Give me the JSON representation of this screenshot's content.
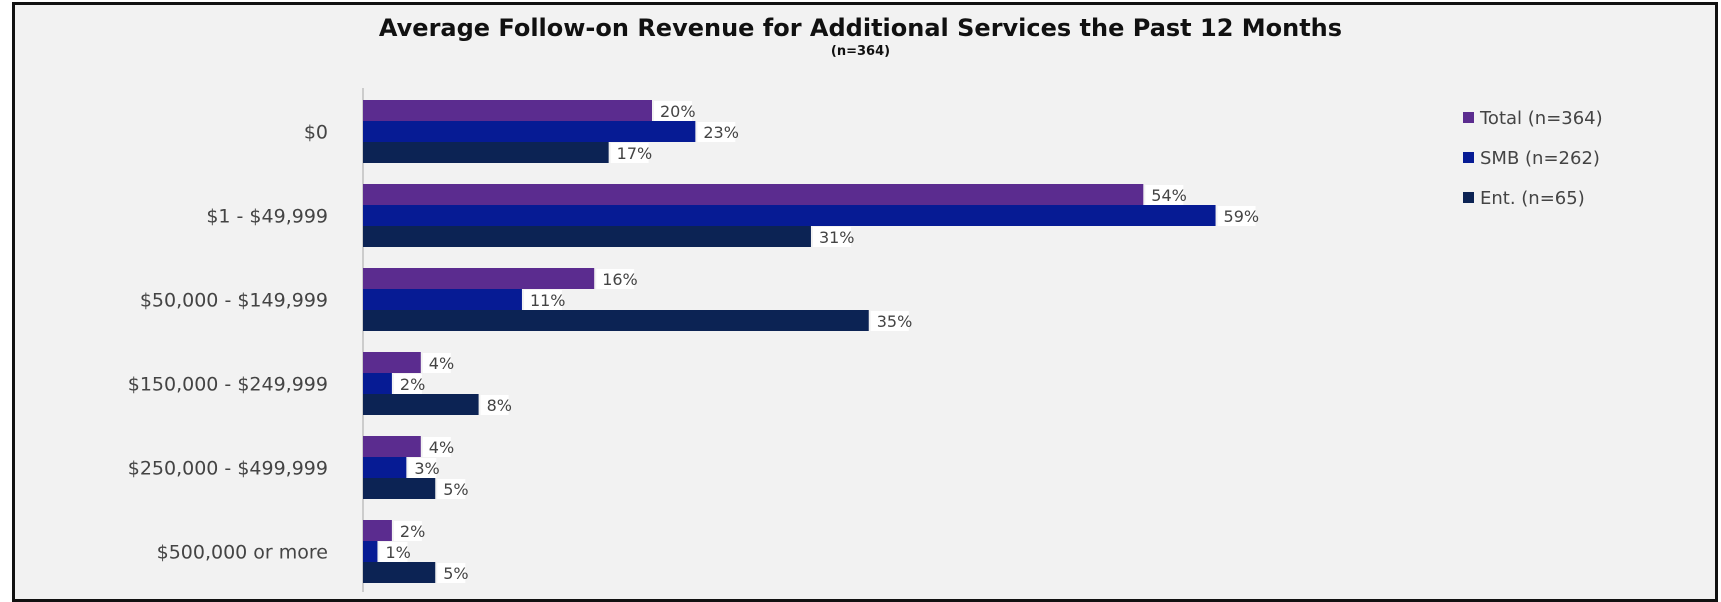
{
  "chart_data": {
    "type": "bar",
    "orientation": "horizontal",
    "title": "Average Follow-on Revenue for Additional Services the Past 12 Months",
    "subtitle": "(n=364)",
    "categories": [
      "$0",
      "$1 - $49,999",
      "$50,000 - $149,999",
      "$150,000 - $249,999",
      "$250,000 - $499,999",
      "$500,000 or more"
    ],
    "series": [
      {
        "name": "Total (n=364)",
        "color": "#5b2c8f",
        "values": [
          20,
          54,
          16,
          4,
          4,
          2
        ],
        "labels": [
          "20%",
          "54%",
          "16%",
          "4%",
          "4%",
          "2%"
        ]
      },
      {
        "name": "SMB (n=262)",
        "color": "#061b94",
        "values": [
          23,
          59,
          11,
          2,
          3,
          1
        ],
        "labels": [
          "23%",
          "59%",
          "11%",
          "2%",
          "3%",
          "1%"
        ]
      },
      {
        "name": "Ent. (n=65)",
        "color": "#0c2354",
        "values": [
          17,
          31,
          35,
          8,
          5,
          5
        ],
        "labels": [
          "17%",
          "31%",
          "35%",
          "8%",
          "5%",
          "5%"
        ]
      }
    ],
    "value_unit": "%",
    "grid": false,
    "legend_position": "top-right"
  }
}
